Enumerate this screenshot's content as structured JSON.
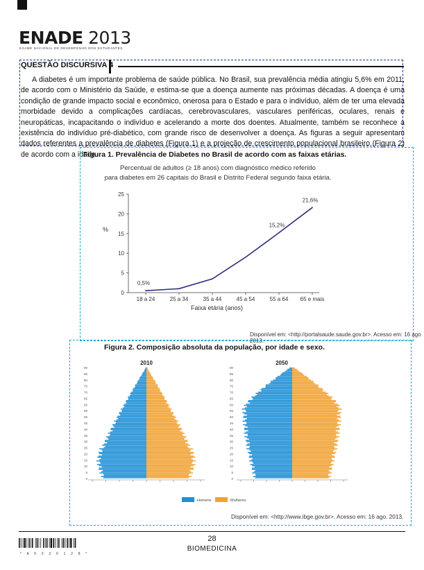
{
  "header": {
    "logo_main": "ENADE",
    "logo_year": "2013",
    "logo_subtitle": "Exame Nacional de Desempenho dos Estudantes"
  },
  "question": {
    "title": "QUESTÃO DISCURSIVA 4",
    "text": "A diabetes é um importante problema de saúde pública. No Brasil, sua prevalência média atingiu 5,6% em 2011, de acordo com o Ministério da Saúde, e estima-se que a doença aumente nas próximas décadas. A doença é uma condição de grande impacto social e econômico, onerosa para o Estado e para o indivíduo, além de ter uma elevada morbidade devido a complicações cardíacas, cerebrovasculares, vasculares periféricas, oculares, renais e neuropáticas, incapacitando o indivíduo e acelerando a morte dos doentes. Atualmente, também se reconhece a existência do indivíduo pré-diabético, com grande risco de desenvolver a doença. As figuras a seguir apresentam dados referentes a prevalência de diabetes (Figura 1) e a projeção de crescimento populacional brasileiro (Figura 2) de acordo com a idade."
  },
  "figure1": {
    "title": "Figura 1. Prevalência de Diabetes no Brasil de acordo com as faixas etárias.",
    "subtitle_line1": "Percentual de adultos (≥ 18 anos) com diagnóstico médico referido",
    "subtitle_line2": "para diabetes em 26 capitais do Brasil e Distrito Federal segundo faixa etária.",
    "source": "Disponível em: <http://portalsaude.saude.gov.br>. Acesso em: 16 ago 2013.",
    "chart_data": {
      "type": "line",
      "categories": [
        "18 a 24",
        "25 a 34",
        "35 a 44",
        "45 a 54",
        "55 a 64",
        "65 e mais"
      ],
      "series": [
        {
          "values": [
            0.5,
            1.0,
            3.5,
            9.0,
            15.2,
            21.6
          ]
        }
      ],
      "annotations": [
        "0,5%",
        "15,2%",
        "21,6%"
      ],
      "ylabel": "%",
      "xlabel": "Faixa etária (anos)",
      "yticks": [
        "0",
        "5",
        "10",
        "15",
        "20",
        "25"
      ],
      "ylim": [
        0,
        25
      ],
      "color": "#2b2d7c"
    }
  },
  "figure2": {
    "title": "Figura 2. Composição absoluta da população, por idade e sexo.",
    "source": "Disponível em: <http://www.ibge.gov.br>. Acesso em: 16 ago. 2013.",
    "pyramid_left_label": "2010",
    "pyramid_right_label": "2050",
    "legend_male": "Homens",
    "legend_female": "Mulheres",
    "male_color": "#1f8fd6",
    "female_color": "#f0a234",
    "age_axis_labels": [
      "90",
      "85",
      "80",
      "75",
      "70",
      "65",
      "60",
      "55",
      "50",
      "45",
      "40",
      "35",
      "30",
      "25",
      "20",
      "15",
      "10",
      "5",
      "0"
    ]
  },
  "footer": {
    "page_number": "28",
    "course": "BIOMEDICINA",
    "barcode_number": "* A 0 2 2 0 1 2 8 *"
  }
}
